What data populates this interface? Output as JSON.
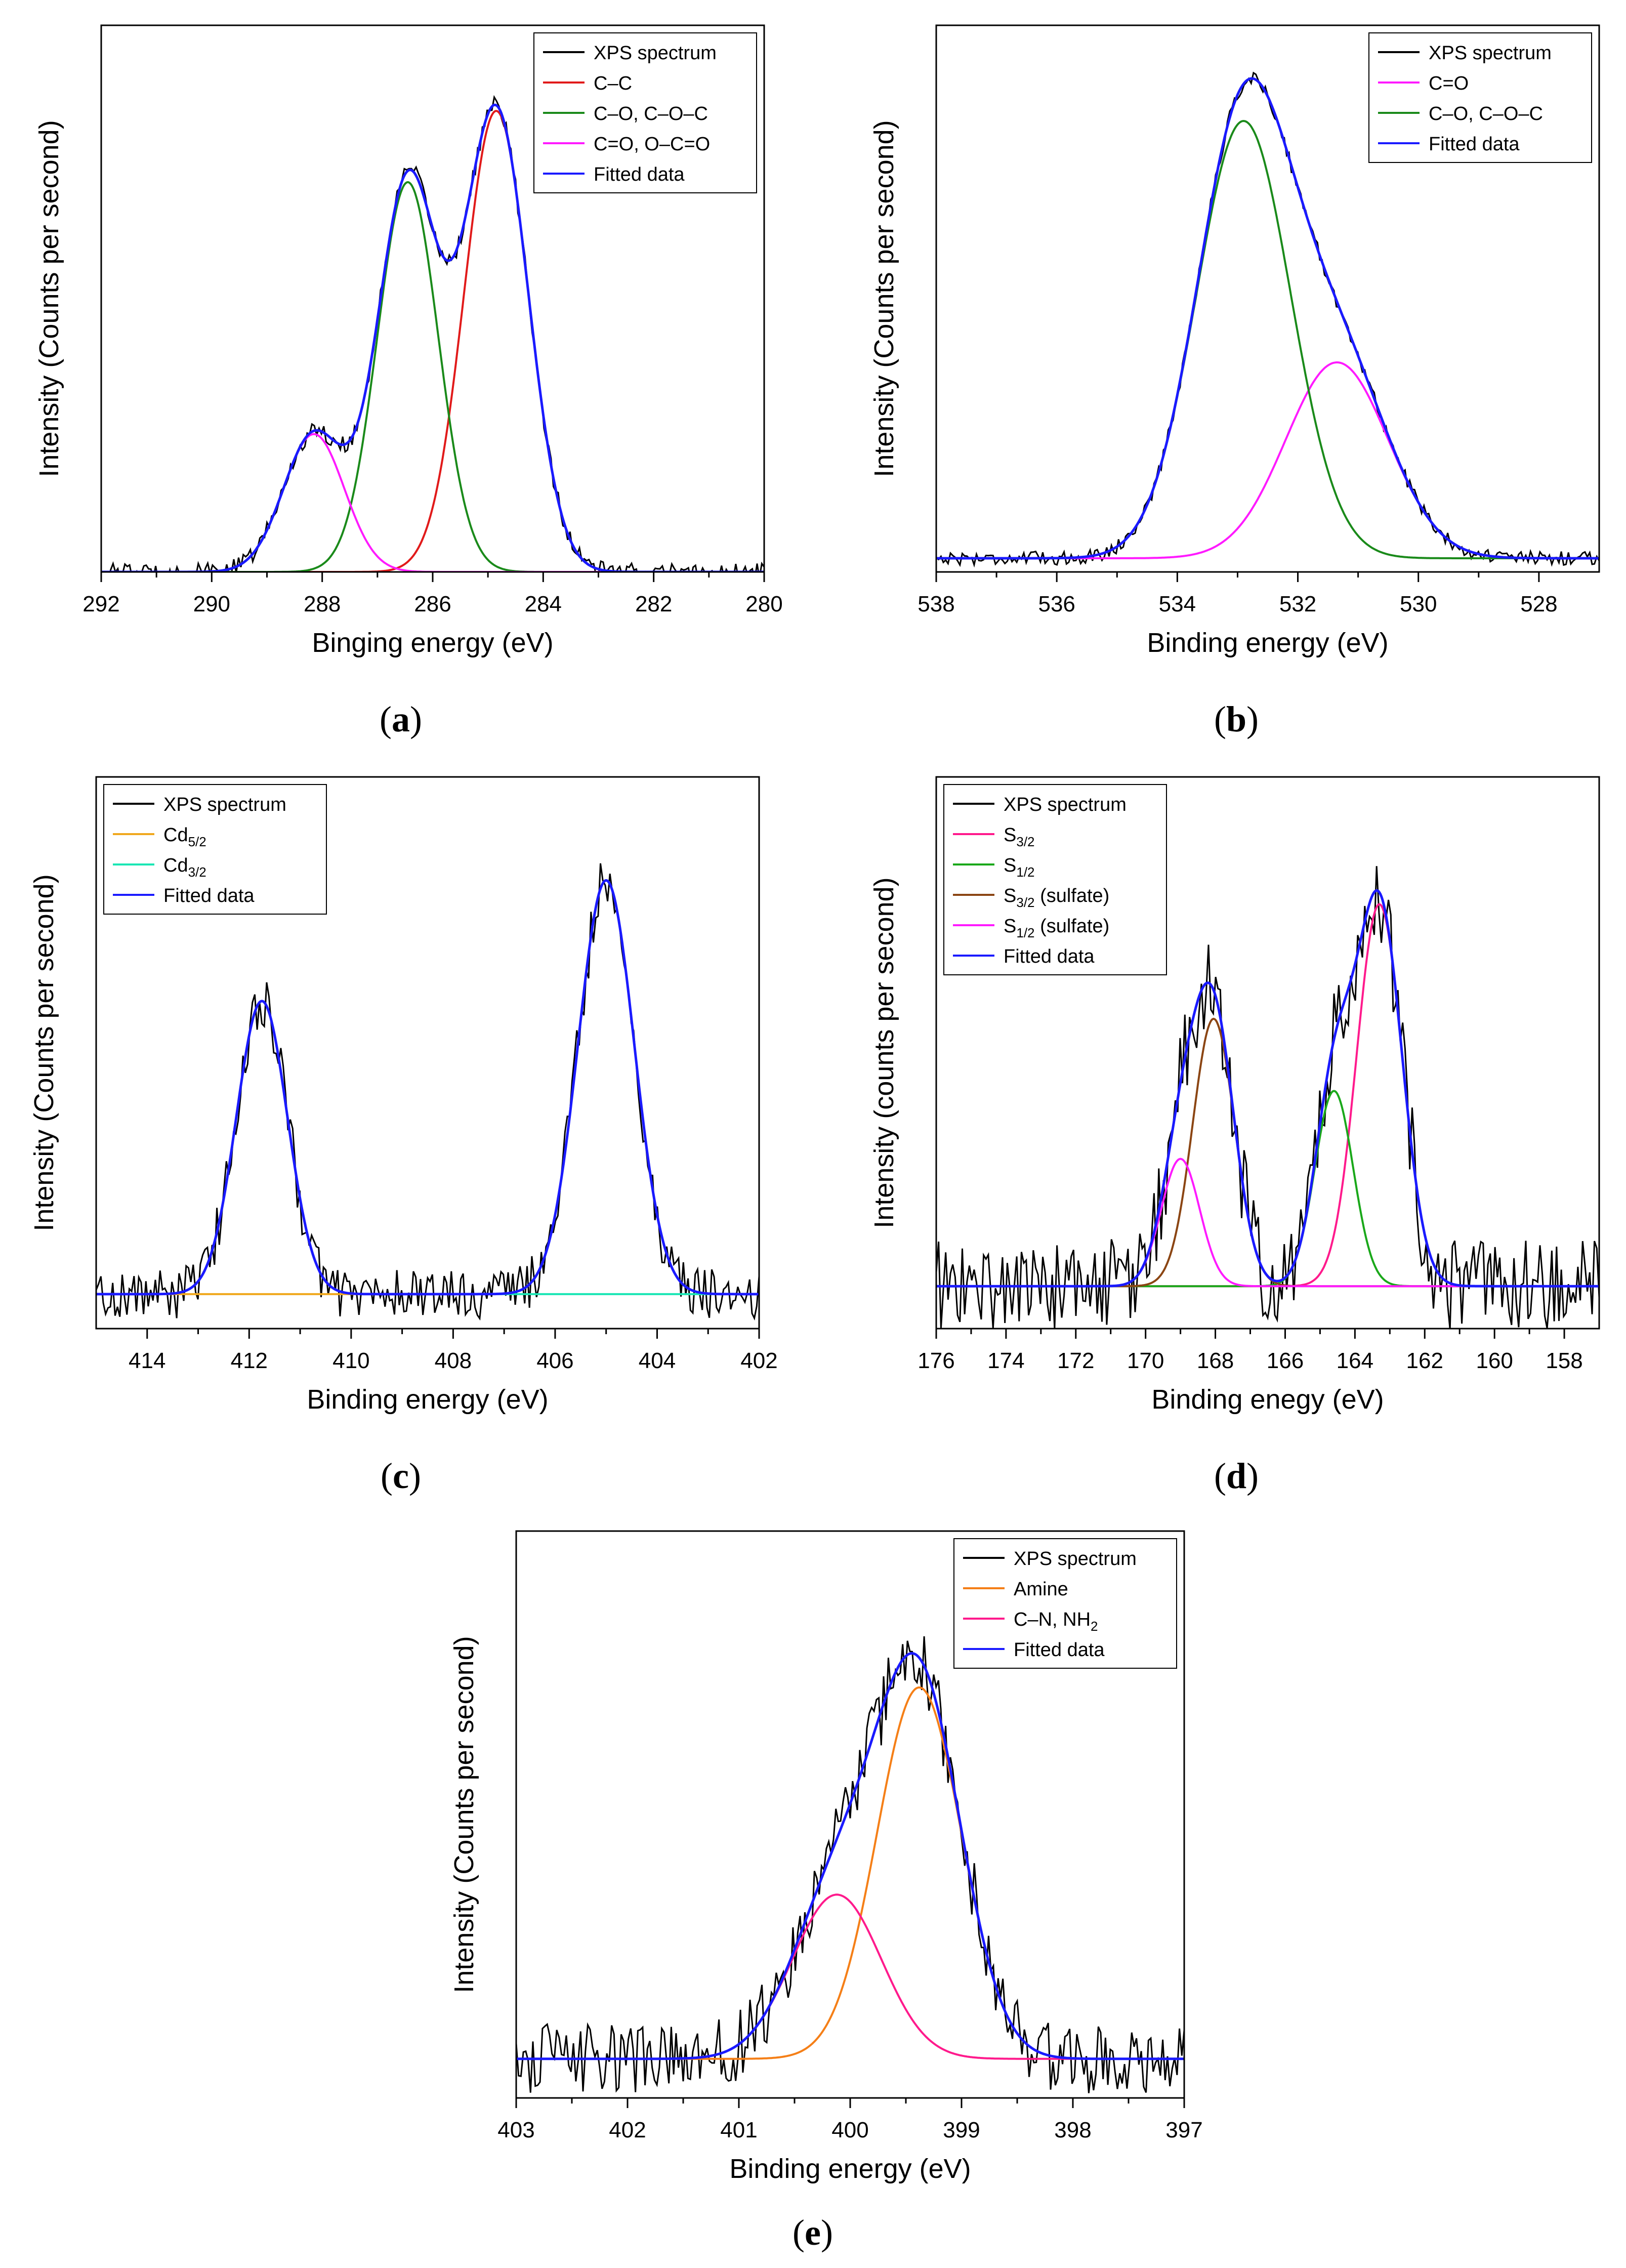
{
  "chart_data": [
    {
      "id": "a",
      "type": "line",
      "panel_label": "a",
      "xlabel": "Binging energy (eV)",
      "ylabel": "Intensity (Counts per second)",
      "xlim": [
        292,
        280
      ],
      "ylim": [
        0,
        1.15
      ],
      "xticks": [
        292,
        290,
        288,
        286,
        284,
        282,
        280
      ],
      "grid": false,
      "legend_position": "top-right",
      "background": 0.0,
      "components": [
        {
          "name": "C–C",
          "center": 284.85,
          "height": 0.97,
          "sigma": 0.58,
          "color": "#e11a1a"
        },
        {
          "name": "C–O, C–O–C",
          "center": 286.45,
          "height": 0.82,
          "sigma": 0.55,
          "color": "#1a8a1a"
        },
        {
          "name": "C=O, O–C=O",
          "center": 288.15,
          "height": 0.29,
          "sigma": 0.55,
          "color": "#ff1aff"
        }
      ],
      "noise": 0.018,
      "series": [
        {
          "name": "XPS spectrum",
          "color": "#000000",
          "kind": "spectrum"
        },
        {
          "name": "C–C",
          "color": "#e11a1a",
          "kind": "component",
          "component": 0
        },
        {
          "name": "C–O, C–O–C",
          "color": "#1a8a1a",
          "kind": "component",
          "component": 1
        },
        {
          "name": "C=O, O–C=O",
          "color": "#ff1aff",
          "kind": "component",
          "component": 2
        },
        {
          "name": "Fitted data",
          "color": "#1a1aff",
          "kind": "fit"
        }
      ]
    },
    {
      "id": "b",
      "type": "line",
      "panel_label": "b",
      "xlabel": "Binding energy (eV)",
      "ylabel": "Intensity (Counts per second)",
      "xlim": [
        538,
        527
      ],
      "ylim": [
        0,
        1.2
      ],
      "xticks": [
        538,
        536,
        534,
        532,
        530,
        528
      ],
      "grid": false,
      "legend_position": "top-right",
      "background": 0.03,
      "components": [
        {
          "name": "C=O",
          "center": 531.35,
          "height": 0.43,
          "sigma": 0.85,
          "color": "#ff1aff"
        },
        {
          "name": "C–O, C–O–C",
          "center": 532.9,
          "height": 0.96,
          "sigma": 0.78,
          "color": "#1a8a1a"
        }
      ],
      "noise": 0.015,
      "series": [
        {
          "name": "XPS spectrum",
          "color": "#000000",
          "kind": "spectrum"
        },
        {
          "name": "C=O",
          "color": "#ff1aff",
          "kind": "component",
          "component": 0
        },
        {
          "name": "C–O, C–O–C",
          "color": "#1a8a1a",
          "kind": "component",
          "component": 1
        },
        {
          "name": "Fitted data",
          "color": "#1a1aff",
          "kind": "fit"
        }
      ]
    },
    {
      "id": "c",
      "type": "line",
      "panel_label": "c",
      "xlabel": "Binding energy (eV)",
      "ylabel": "Intensity (Counts per second)",
      "xlim": [
        415,
        402
      ],
      "ylim": [
        -0.08,
        1.2
      ],
      "xticks": [
        414,
        412,
        410,
        408,
        406,
        404,
        402
      ],
      "grid": false,
      "legend_position": "top-left",
      "background": 0.0,
      "components": [
        {
          "name": "Cd5/2",
          "center": 405.0,
          "height": 0.96,
          "sigma": 0.55,
          "color": "#f0a81e"
        },
        {
          "name": "Cd3/2",
          "center": 411.75,
          "height": 0.68,
          "sigma": 0.5,
          "color": "#1ae6b4"
        }
      ],
      "noise": 0.06,
      "series": [
        {
          "name": "XPS spectrum",
          "color": "#000000",
          "kind": "spectrum"
        },
        {
          "name": "Cd",
          "sub": "5/2",
          "color": "#f0a81e",
          "kind": "baseline"
        },
        {
          "name": "Cd",
          "sub": "3/2",
          "color": "#1ae6b4",
          "kind": "baseline"
        },
        {
          "name": "Fitted data",
          "color": "#1a1aff",
          "kind": "fit"
        }
      ]
    },
    {
      "id": "d",
      "type": "line",
      "panel_label": "d",
      "xlabel": "Binding enegy (eV)",
      "ylabel": "Intensity (counts per second)",
      "xlim": [
        176,
        157
      ],
      "ylim": [
        -0.1,
        1.2
      ],
      "xticks": [
        176,
        174,
        172,
        170,
        168,
        166,
        164,
        162,
        160,
        158
      ],
      "grid": false,
      "legend_position": "top-left",
      "background": 0.0,
      "components": [
        {
          "name": "S3/2",
          "center": 163.3,
          "height": 0.9,
          "sigma": 0.65,
          "color": "#ff1a8c"
        },
        {
          "name": "S1/2",
          "center": 164.6,
          "height": 0.46,
          "sigma": 0.55,
          "color": "#1aa81a"
        },
        {
          "name": "S3/2 (sulfate)",
          "center": 168.05,
          "height": 0.63,
          "sigma": 0.6,
          "color": "#8b4513"
        },
        {
          "name": "S1/2 (sulfate)",
          "center": 169.0,
          "height": 0.3,
          "sigma": 0.55,
          "color": "#ff1aff"
        }
      ],
      "noise": 0.11,
      "series": [
        {
          "name": "XPS spectrum",
          "color": "#000000",
          "kind": "spectrum"
        },
        {
          "name": "S",
          "sub": "3/2",
          "color": "#ff1a8c",
          "kind": "component",
          "component": 0
        },
        {
          "name": "S",
          "sub": "1/2",
          "color": "#1aa81a",
          "kind": "component",
          "component": 1
        },
        {
          "name": "S",
          "sub": "3/2",
          "suffix": " (sulfate)",
          "color": "#8b4513",
          "kind": "component",
          "component": 2
        },
        {
          "name": "S",
          "sub": "1/2",
          "suffix": " (sulfate)",
          "color": "#ff1aff",
          "kind": "component",
          "component": 3
        },
        {
          "name": "Fitted data",
          "color": "#1a1aff",
          "kind": "fit"
        }
      ]
    },
    {
      "id": "e",
      "type": "line",
      "panel_label": "e",
      "xlabel": "Binding energy (eV)",
      "ylabel": "Intensity (Counts per second)",
      "xlim": [
        403,
        397
      ],
      "ylim": [
        -0.1,
        1.35
      ],
      "xticks": [
        403,
        402,
        401,
        400,
        399,
        398,
        397
      ],
      "grid": false,
      "legend_position": "top-right",
      "background": 0.0,
      "components": [
        {
          "name": "Amine",
          "center": 399.38,
          "height": 0.95,
          "sigma": 0.38,
          "color": "#f57f17"
        },
        {
          "name": "C–N, NH2",
          "center": 400.12,
          "height": 0.42,
          "sigma": 0.4,
          "color": "#ff1a8c"
        }
      ],
      "noise": 0.09,
      "series": [
        {
          "name": "XPS spectrum",
          "color": "#000000",
          "kind": "spectrum"
        },
        {
          "name": "Amine",
          "color": "#f57f17",
          "kind": "component",
          "component": 0
        },
        {
          "name": "C–N, NH",
          "sub": "2",
          "color": "#ff1a8c",
          "kind": "component",
          "component": 1
        },
        {
          "name": "Fitted data",
          "color": "#1a1aff",
          "kind": "fit"
        }
      ]
    }
  ]
}
